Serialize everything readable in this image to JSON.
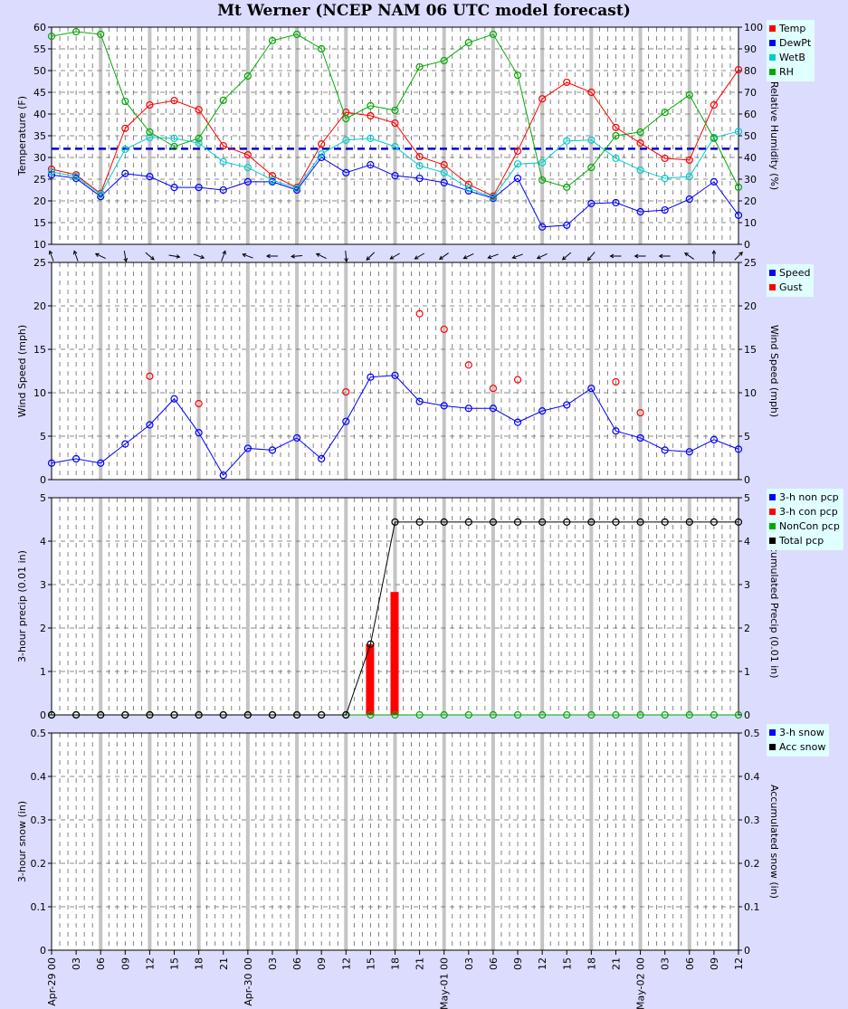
{
  "title": "Mt Werner (NCEP NAM 06 UTC model forecast)",
  "chart_data": [
    {
      "type": "line",
      "ylabel": "Temperature (F)",
      "ylabel_right": "Relative Humidity (%)",
      "ylim": [
        10,
        60
      ],
      "ylim_right": [
        0,
        100
      ],
      "yticks": [
        "10",
        "15",
        "20",
        "25",
        "30",
        "35",
        "40",
        "45",
        "50",
        "55",
        "60"
      ],
      "yticks_right": [
        "0",
        "10",
        "20",
        "30",
        "40",
        "50",
        "60",
        "70",
        "80",
        "90",
        "100"
      ],
      "reference_line": {
        "value": 32,
        "color": "#0000cc",
        "style": "dashed"
      },
      "legend": "top-right",
      "series": [
        {
          "name": "Temp",
          "color": "#ff0000",
          "axis": "left",
          "values": [
            27.3,
            26.0,
            21.7,
            36.7,
            42.1,
            43.1,
            41.0,
            32.7,
            30.6,
            25.8,
            23.1,
            33.1,
            40.4,
            39.6,
            37.9,
            30.2,
            28.3,
            23.8,
            21.1,
            31.5,
            43.5,
            47.3,
            45.0,
            36.9,
            33.3,
            29.8,
            29.4,
            42.1,
            50.2
          ]
        },
        {
          "name": "DewPt",
          "color": "#0000ff",
          "axis": "left",
          "values": [
            26.0,
            25.2,
            21.0,
            26.3,
            25.6,
            23.1,
            23.1,
            22.5,
            24.4,
            24.4,
            22.5,
            30.0,
            26.5,
            28.3,
            25.8,
            25.2,
            24.2,
            22.3,
            20.6,
            25.2,
            14.0,
            14.4,
            19.4,
            19.6,
            17.5,
            17.9,
            20.4,
            24.4,
            16.7
          ]
        },
        {
          "name": "WetB",
          "color": "#00cccc",
          "axis": "left",
          "values": [
            26.7,
            25.6,
            21.5,
            31.9,
            34.6,
            34.4,
            33.3,
            29.0,
            27.7,
            24.8,
            22.9,
            30.8,
            34.0,
            34.4,
            32.5,
            28.1,
            26.5,
            22.9,
            20.8,
            28.5,
            28.8,
            33.8,
            34.0,
            29.8,
            27.1,
            25.2,
            25.6,
            34.6,
            36.0
          ]
        },
        {
          "name": "RH",
          "color": "#00aa00",
          "axis": "right",
          "values": [
            95.8,
            97.9,
            96.7,
            65.8,
            51.7,
            45.0,
            48.8,
            66.3,
            77.5,
            93.8,
            96.7,
            90.0,
            57.9,
            63.8,
            61.7,
            81.7,
            84.6,
            92.9,
            96.7,
            77.9,
            29.6,
            26.3,
            35.4,
            50.0,
            51.7,
            60.8,
            68.8,
            48.8,
            26.3
          ]
        }
      ]
    },
    {
      "type": "line",
      "ylabel": "Wind Speed (mph)",
      "ylabel_right": "Wind Speed (mph)",
      "ylim": [
        0,
        25
      ],
      "ylim_right": [
        0,
        25
      ],
      "yticks": [
        "0",
        "5",
        "10",
        "15",
        "20",
        "25"
      ],
      "yticks_right": [
        "0",
        "5",
        "10",
        "15",
        "20",
        "25"
      ],
      "legend": "top-right",
      "wind_direction_arrows_bearing_deg": [
        340,
        340,
        295,
        170,
        130,
        100,
        110,
        20,
        290,
        270,
        265,
        295,
        175,
        225,
        240,
        240,
        235,
        245,
        250,
        250,
        245,
        230,
        220,
        270,
        270,
        270,
        305,
        0,
        45
      ],
      "series": [
        {
          "name": "Speed",
          "color": "#0000ff",
          "values": [
            1.9,
            2.4,
            1.9,
            4.1,
            6.3,
            9.3,
            5.4,
            0.5,
            3.6,
            3.4,
            4.8,
            2.4,
            6.7,
            11.8,
            12.0,
            9.0,
            8.5,
            8.2,
            8.2,
            6.6,
            7.9,
            8.6,
            10.5,
            5.6,
            4.8,
            3.4,
            3.2,
            4.6,
            3.5
          ]
        },
        {
          "name": "Gust",
          "color": "#ff0000",
          "markers_only": true,
          "values": [
            null,
            null,
            null,
            null,
            11.9,
            null,
            8.75,
            null,
            null,
            null,
            null,
            null,
            10.1,
            null,
            null,
            19.1,
            17.3,
            13.2,
            10.5,
            11.5,
            null,
            null,
            null,
            11.25,
            7.7,
            null,
            null,
            null,
            null
          ]
        }
      ]
    },
    {
      "type": "bar",
      "ylabel": "3-hour precip (0.01 in)",
      "ylabel_right": "Accumulated Precip (0.01 in)",
      "ylim": [
        0,
        5
      ],
      "ylim_right": [
        0,
        5
      ],
      "yticks": [
        "0",
        "1",
        "2",
        "3",
        "4",
        "5"
      ],
      "yticks_right": [
        "0",
        "1",
        "2",
        "3",
        "4",
        "5"
      ],
      "legend": "top-right",
      "series": [
        {
          "name": "3-h non pcp",
          "color": "#0000ff",
          "kind": "bar",
          "values": [
            0,
            0,
            0,
            0,
            0,
            0,
            0,
            0,
            0,
            0,
            0,
            0,
            0,
            0,
            0,
            0,
            0,
            0,
            0,
            0,
            0,
            0,
            0,
            0,
            0,
            0,
            0,
            0,
            0
          ]
        },
        {
          "name": "3-h con pcp",
          "color": "#ff0000",
          "kind": "bar",
          "values": [
            0,
            0,
            0,
            0,
            0,
            0,
            0,
            0,
            0,
            0,
            0,
            0,
            0,
            1.63,
            2.83,
            0,
            0,
            0,
            0,
            0,
            0,
            0,
            0,
            0,
            0,
            0,
            0,
            0,
            0
          ]
        },
        {
          "name": "NonCon pcp",
          "color": "#00aa00",
          "kind": "line",
          "values": [
            0,
            0,
            0,
            0,
            0,
            0,
            0,
            0,
            0,
            0,
            0,
            0,
            0,
            0,
            0,
            0,
            0,
            0,
            0,
            0,
            0,
            0,
            0,
            0,
            0,
            0,
            0,
            0,
            0
          ]
        },
        {
          "name": "Total pcp",
          "color": "#000000",
          "kind": "line",
          "values": [
            0,
            0,
            0,
            0,
            0,
            0,
            0,
            0,
            0,
            0,
            0,
            0,
            0,
            1.63,
            4.44,
            4.44,
            4.44,
            4.44,
            4.44,
            4.44,
            4.44,
            4.44,
            4.44,
            4.44,
            4.44,
            4.44,
            4.44,
            4.44,
            4.44
          ]
        }
      ]
    },
    {
      "type": "bar",
      "ylabel": "3-hour snow (in)",
      "ylabel_right": "Accumulated snow (in)",
      "ylim": [
        0,
        0.5
      ],
      "ylim_right": [
        0,
        0.5
      ],
      "yticks": [
        "0",
        "0.1",
        "0.2",
        "0.3",
        "0.4",
        "0.5"
      ],
      "yticks_right": [
        "0",
        "0.1",
        "0.2",
        "0.3",
        "0.4",
        "0.5"
      ],
      "legend": "top-right",
      "series": [
        {
          "name": "3-h snow",
          "color": "#0000ff",
          "kind": "bar",
          "values": []
        },
        {
          "name": "Acc snow",
          "color": "#000000",
          "kind": "line",
          "values": []
        }
      ]
    }
  ],
  "x_labels": [
    "Apr-29 00",
    "03",
    "06",
    "09",
    "12",
    "15",
    "18",
    "21",
    "Apr-30 00",
    "03",
    "06",
    "09",
    "12",
    "15",
    "18",
    "21",
    "May-01 00",
    "03",
    "06",
    "09",
    "12",
    "15",
    "18",
    "21",
    "May-02 00",
    "03",
    "06",
    "09",
    "12"
  ]
}
